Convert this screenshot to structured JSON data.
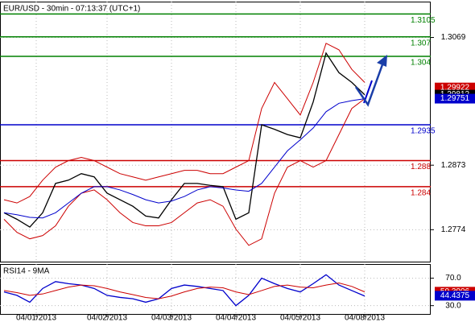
{
  "chart_data": [
    {
      "type": "line",
      "title": "EUR/USD - 30min - 07:13:37 (UTC+1)",
      "x": [
        0,
        1,
        2,
        3,
        4,
        5,
        6,
        7,
        8,
        9,
        10,
        11,
        12,
        13,
        14,
        15,
        16,
        17,
        18,
        19,
        20,
        21,
        22,
        23,
        24,
        25,
        26,
        27,
        28
      ],
      "xlim": [
        -0.3125,
        33.125
      ],
      "xticks": [
        {
          "value": 2.5,
          "label": "04/01/2013"
        },
        {
          "value": 8,
          "label": "04/02/2013"
        },
        {
          "value": 13,
          "label": "04/03/2013"
        },
        {
          "value": 18,
          "label": "04/04/2013"
        },
        {
          "value": 23,
          "label": "04/05/2013"
        },
        {
          "value": 28,
          "label": "04/08/2013"
        }
      ],
      "ylim": [
        1.2725,
        1.3124
      ],
      "yticks": [
        1.3069,
        1.2873,
        1.2774
      ],
      "grid": true,
      "series": [
        {
          "color": "#000000",
          "values": [
            1.28,
            1.279,
            1.2778,
            1.28,
            1.2845,
            1.285,
            1.286,
            1.2855,
            1.283,
            1.282,
            1.281,
            1.2795,
            1.2792,
            1.282,
            1.2845,
            1.2845,
            1.2842,
            1.284,
            1.279,
            1.28,
            1.2935,
            1.2928,
            1.292,
            1.2915,
            1.297,
            1.3045,
            1.3015,
            1.3,
            1.2981
          ]
        },
        {
          "color": "#cc0000",
          "values": [
            1.282,
            1.2815,
            1.2825,
            1.285,
            1.287,
            1.288,
            1.2885,
            1.288,
            1.287,
            1.286,
            1.2855,
            1.285,
            1.2855,
            1.286,
            1.2865,
            1.2865,
            1.286,
            1.286,
            1.287,
            1.288,
            1.296,
            1.3,
            1.2975,
            1.295,
            1.3,
            1.306,
            1.305,
            1.302,
            1.3
          ]
        },
        {
          "color": "#cc0000",
          "values": [
            1.279,
            1.277,
            1.276,
            1.2765,
            1.278,
            1.281,
            1.283,
            1.2835,
            1.282,
            1.28,
            1.2785,
            1.278,
            1.278,
            1.2785,
            1.28,
            1.2815,
            1.282,
            1.281,
            1.2775,
            1.275,
            1.276,
            1.283,
            1.287,
            1.288,
            1.287,
            1.288,
            1.292,
            1.296,
            1.2975
          ]
        },
        {
          "color": "#0000cc",
          "values": [
            1.28,
            1.2797,
            1.2793,
            1.2792,
            1.28,
            1.2815,
            1.283,
            1.284,
            1.284,
            1.2835,
            1.2828,
            1.282,
            1.2815,
            1.2818,
            1.2825,
            1.2835,
            1.284,
            1.2838,
            1.2835,
            1.2833,
            1.2845,
            1.287,
            1.2895,
            1.2912,
            1.293,
            1.2955,
            1.2968,
            1.2972,
            1.2975
          ]
        }
      ],
      "levels": [
        {
          "value": 1.3105,
          "color": "#008000"
        },
        {
          "value": 1.307,
          "color": "#008000"
        },
        {
          "value": 1.304,
          "color": "#008000"
        },
        {
          "value": 1.2935,
          "color": "#0000cc"
        },
        {
          "value": 1.288,
          "color": "#cc0000"
        },
        {
          "value": 1.284,
          "color": "#cc0000"
        }
      ],
      "markers": [
        {
          "value": 1.29922,
          "color": "#cc0000"
        },
        {
          "value": 1.29812,
          "color": "#000000"
        },
        {
          "value": 1.29751,
          "color": "#0000cc"
        }
      ]
    },
    {
      "type": "line",
      "title": "RSI14 - 9MA",
      "ylim": [
        17.9,
        90.6
      ],
      "yticks": [
        {
          "value": 70,
          "label": "70.0"
        },
        {
          "value": 30,
          "label": "30.0"
        }
      ],
      "grid": true,
      "series": [
        {
          "color": "#0000cc",
          "values": [
            50,
            45,
            35,
            55,
            65,
            62,
            60,
            55,
            45,
            42,
            40,
            35,
            40,
            55,
            60,
            58,
            55,
            52,
            30,
            45,
            70,
            62,
            55,
            50,
            62,
            75,
            60,
            52,
            44
          ]
        },
        {
          "color": "#cc0000",
          "values": [
            52,
            49,
            45,
            47,
            52,
            57,
            60,
            59,
            55,
            50,
            46,
            42,
            40,
            44,
            50,
            55,
            57,
            56,
            50,
            46,
            52,
            58,
            60,
            57,
            56,
            60,
            63,
            58,
            50
          ]
        }
      ],
      "markers": [
        {
          "value": 50.3006,
          "color": "#cc0000"
        },
        {
          "value": 44.4375,
          "color": "#0000cc"
        }
      ]
    }
  ]
}
